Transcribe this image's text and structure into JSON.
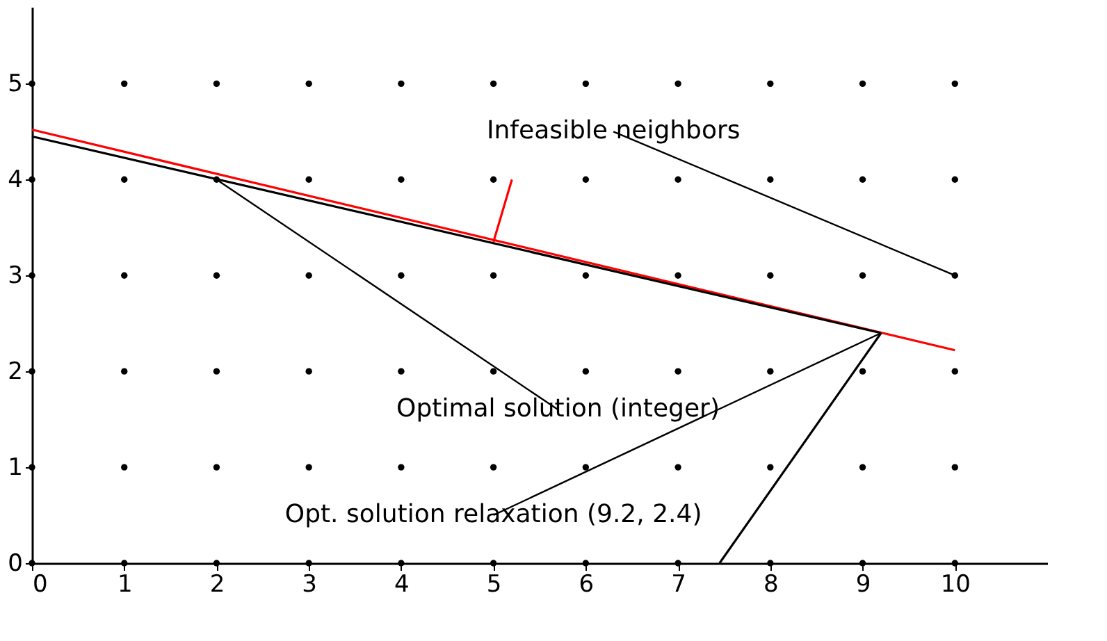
{
  "chart_data": {
    "type": "scatter",
    "xlim": [
      0,
      11
    ],
    "ylim": [
      0,
      5.8
    ],
    "xticks": [
      0,
      1,
      2,
      3,
      4,
      5,
      6,
      7,
      8,
      9,
      10
    ],
    "yticks": [
      0,
      1,
      2,
      3,
      4,
      5
    ],
    "grid": false,
    "series": [
      {
        "color": "#000000",
        "marker": "circle",
        "x": [
          0,
          1,
          2,
          3,
          4,
          5,
          6,
          7,
          8,
          9,
          10,
          0,
          1,
          2,
          3,
          4,
          5,
          6,
          7,
          8,
          9,
          10,
          0,
          1,
          2,
          3,
          4,
          5,
          6,
          7,
          8,
          9,
          10,
          0,
          1,
          2,
          3,
          4,
          5,
          6,
          7,
          8,
          9,
          10,
          0,
          1,
          2,
          3,
          4,
          5,
          6,
          7,
          8,
          9,
          10,
          0,
          1,
          2,
          3,
          4,
          5,
          6,
          7,
          8,
          9,
          10
        ],
        "values": [
          0,
          0,
          0,
          0,
          0,
          0,
          0,
          0,
          0,
          0,
          0,
          1,
          1,
          1,
          1,
          1,
          1,
          1,
          1,
          1,
          1,
          1,
          2,
          2,
          2,
          2,
          2,
          2,
          2,
          2,
          2,
          2,
          2,
          3,
          3,
          3,
          3,
          3,
          3,
          3,
          3,
          3,
          3,
          3,
          4,
          4,
          4,
          4,
          4,
          4,
          4,
          4,
          4,
          4,
          4,
          5,
          5,
          5,
          5,
          5,
          5,
          5,
          5,
          5,
          5,
          5
        ]
      },
      {
        "type": "line",
        "marker": "none",
        "color": "#ff0000",
        "x": [
          0,
          10
        ],
        "values": [
          4.52,
          2.22
        ]
      },
      {
        "type": "line",
        "marker": "none",
        "color": "#000000",
        "x": [
          0,
          9.2
        ],
        "values": [
          4.45,
          2.4
        ]
      },
      {
        "type": "line",
        "marker": "none",
        "color": "#000000",
        "x": [
          7.45,
          9.2
        ],
        "values": [
          0,
          2.4
        ]
      },
      {
        "type": "line",
        "marker": "none",
        "color": "#ff0000",
        "x": [
          5,
          5.2
        ],
        "values": [
          3.35,
          4.0
        ]
      }
    ],
    "annotations": [
      {
        "text": "Infeasible neighbors",
        "x": 10,
        "y": 3
      },
      {
        "text": "Optimal solution (integer)",
        "x": 2,
        "y": 4
      },
      {
        "text": "Opt. solution relaxation (9.2, 2.4)",
        "x": 9.2,
        "y": 2.4
      }
    ]
  }
}
